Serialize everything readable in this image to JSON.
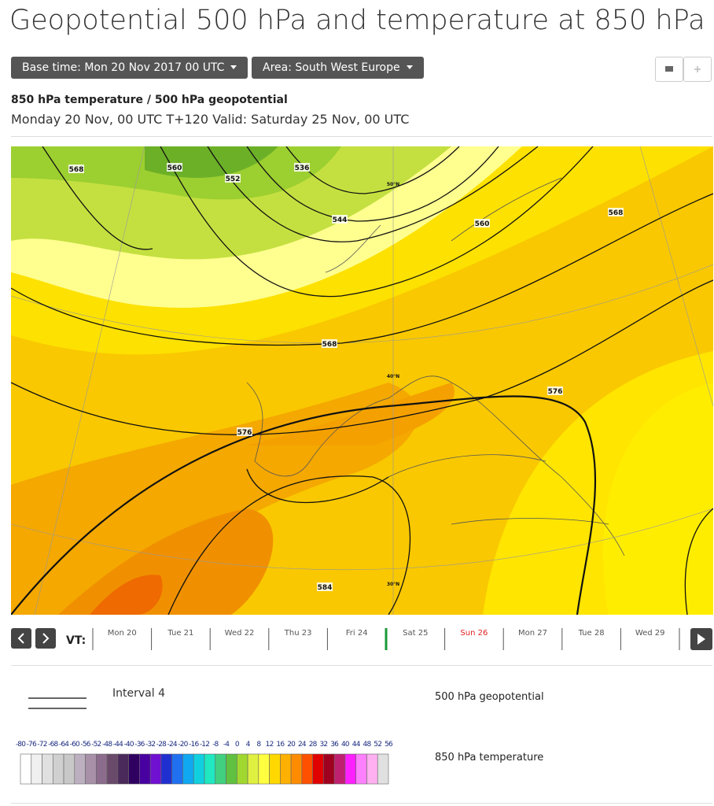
{
  "header": {
    "title": "Geopotential 500 hPa and temperature at 850 hPa"
  },
  "controls": {
    "base_time": "Base time: Mon 20 Nov 2017 00 UTC",
    "area": "Area: South West Europe"
  },
  "map": {
    "heading": "850 hPa temperature / 500 hPa geopotential",
    "subheading": "Monday 20 Nov, 00 UTC T+120 Valid: Saturday 25 Nov, 00 UTC",
    "contour_labels": [
      568,
      560,
      552,
      536,
      544,
      560,
      568,
      568,
      576,
      576,
      584
    ],
    "latitude_labels": [
      "50°N",
      "40°N",
      "30°N"
    ]
  },
  "timeline": {
    "label": "VT:",
    "days": [
      "Mon 20",
      "Tue 21",
      "Wed 22",
      "Thu 23",
      "Fri 24",
      "Sat 25",
      "Sun 26",
      "Mon 27",
      "Tue 28",
      "Wed 29"
    ],
    "selected_index": 5,
    "selected_color": "#1a9a3a",
    "sunday_index": 6,
    "sunday_color": "#e02020"
  },
  "legend": {
    "line_label": "Interval 4",
    "line_title": "500 hPa geopotential",
    "scale_title": "850 hPa temperature",
    "scale_ticks": [
      -80,
      -76,
      -72,
      -68,
      -64,
      -60,
      -56,
      -52,
      -48,
      -44,
      -40,
      -36,
      -32,
      -28,
      -24,
      -20,
      -16,
      -12,
      -8,
      -4,
      0,
      4,
      8,
      12,
      16,
      20,
      24,
      28,
      32,
      36,
      40,
      44,
      48,
      52,
      56
    ],
    "scale_colors": [
      "#ffffff",
      "#f0f0f0",
      "#e0e0e0",
      "#d0d0d0",
      "#c8c8c8",
      "#bcb0c0",
      "#a890a8",
      "#8c6c8c",
      "#6a4a6a",
      "#4a2a5a",
      "#300060",
      "#4800a0",
      "#7010d0",
      "#2030d0",
      "#2070f0",
      "#10a8f0",
      "#10d0e0",
      "#20e8c0",
      "#40d080",
      "#60c040",
      "#a0d830",
      "#e0f040",
      "#ffff40",
      "#ffd800",
      "#ffb000",
      "#ff8c00",
      "#ff5000",
      "#e00000",
      "#a00020",
      "#c02070",
      "#ff20ff",
      "#ff80ff",
      "#ffb0f0",
      "#e0e0e0"
    ]
  }
}
